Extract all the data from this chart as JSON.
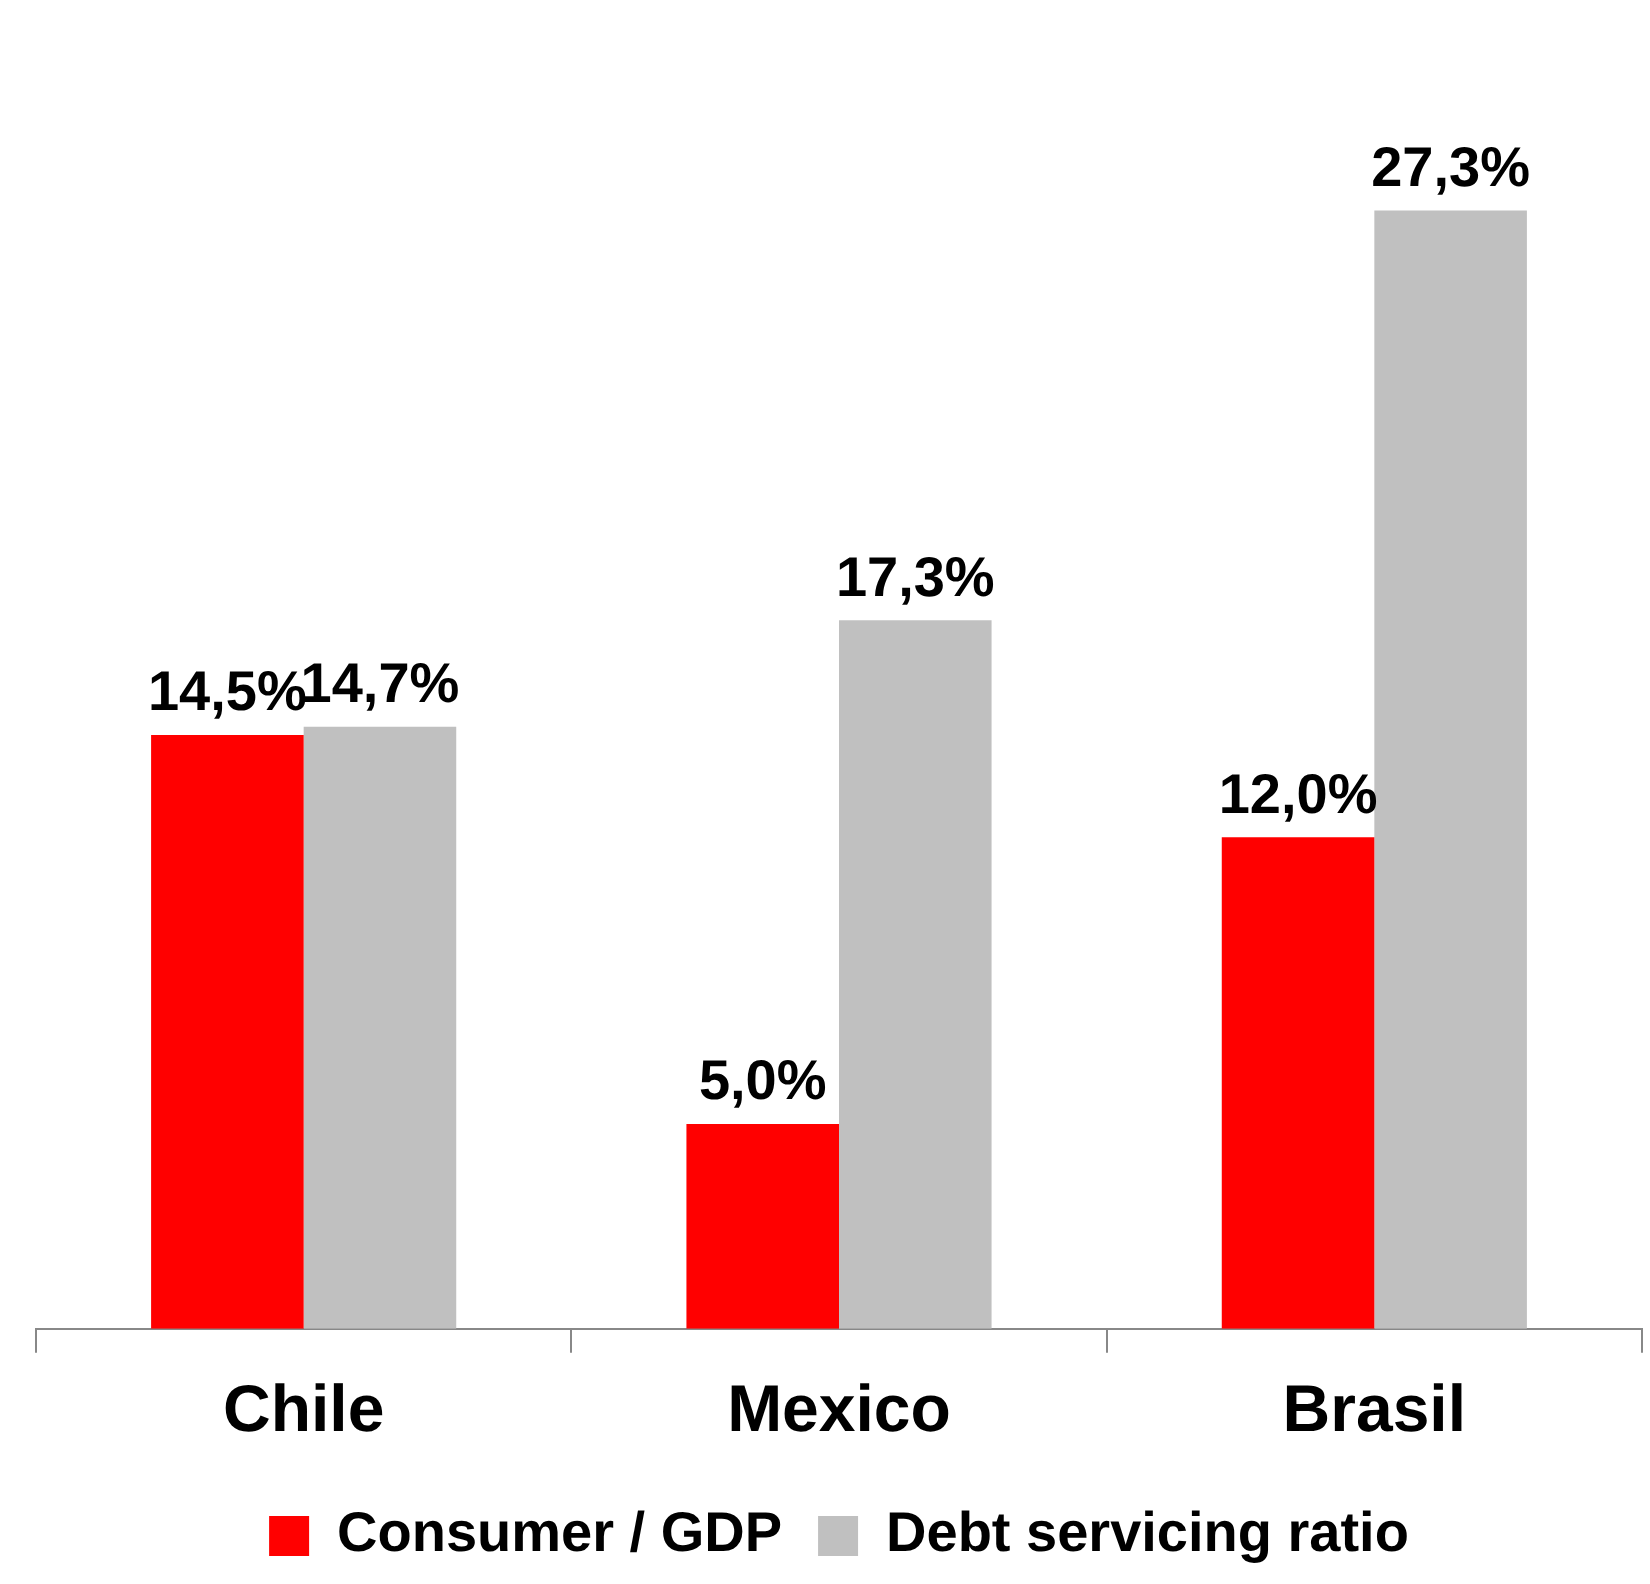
{
  "chart_data": {
    "type": "bar",
    "categories": [
      "Chile",
      "Mexico",
      "Brasil"
    ],
    "series": [
      {
        "name": "Consumer / GDP",
        "color": "#ff0000",
        "values": [
          14.5,
          5.0,
          12.0
        ],
        "value_labels": [
          "14,5%",
          "5,0%",
          "12,0%"
        ]
      },
      {
        "name": "Debt servicing ratio",
        "color": "#c0c0c0",
        "values": [
          14.7,
          17.3,
          27.3
        ],
        "value_labels": [
          "14,7%",
          "17,3%",
          "27,3%"
        ]
      }
    ],
    "legend": "bottom",
    "grid": false
  }
}
